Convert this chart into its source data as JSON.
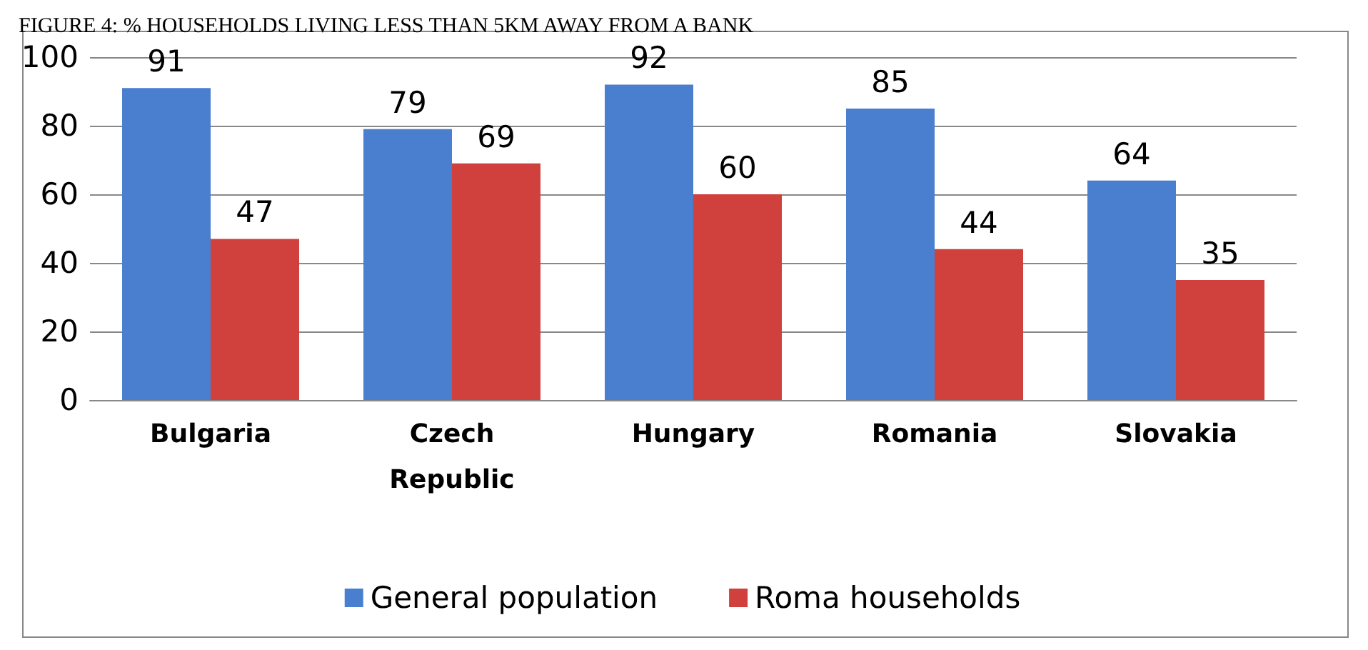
{
  "chart_data": {
    "type": "bar",
    "title": "FIGURE 4: % HOUSEHOLDS LIVING LESS THAN 5KM AWAY FROM A BANK",
    "categories": [
      "Bulgaria",
      "Czech\nRepublic",
      "Hungary",
      "Romania",
      "Slovakia"
    ],
    "series": [
      {
        "name": "General population",
        "color": "#4a7fd0",
        "values": [
          91,
          79,
          92,
          85,
          64
        ]
      },
      {
        "name": "Roma households",
        "color": "#d0403d",
        "values": [
          47,
          69,
          60,
          44,
          35
        ]
      }
    ],
    "ylim": [
      0,
      100
    ],
    "yticks": [
      0,
      20,
      40,
      60,
      80,
      100
    ],
    "grid": "y",
    "legend": "bottom",
    "data_labels": true
  }
}
